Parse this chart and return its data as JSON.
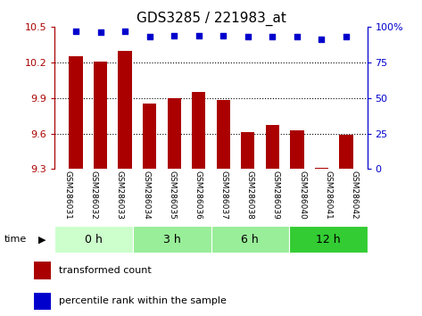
{
  "title": "GDS3285 / 221983_at",
  "samples": [
    "GSM286031",
    "GSM286032",
    "GSM286033",
    "GSM286034",
    "GSM286035",
    "GSM286036",
    "GSM286037",
    "GSM286038",
    "GSM286039",
    "GSM286040",
    "GSM286041",
    "GSM286042"
  ],
  "bar_values": [
    10.25,
    10.21,
    10.3,
    9.85,
    9.9,
    9.95,
    9.88,
    9.61,
    9.67,
    9.63,
    9.31,
    9.59
  ],
  "percentiles": [
    97,
    96,
    97,
    93,
    94,
    94,
    94,
    93,
    93,
    93,
    91,
    93
  ],
  "bar_color": "#aa0000",
  "dot_color": "#0000cc",
  "ylim_left": [
    9.3,
    10.5
  ],
  "ylim_right": [
    0,
    100
  ],
  "yticks_left": [
    9.3,
    9.6,
    9.9,
    10.2,
    10.5
  ],
  "yticks_right": [
    0,
    25,
    50,
    75,
    100
  ],
  "time_groups": [
    {
      "label": "0 h",
      "start": 0,
      "end": 3,
      "color": "#ccffcc"
    },
    {
      "label": "3 h",
      "start": 3,
      "end": 6,
      "color": "#99ee99"
    },
    {
      "label": "6 h",
      "start": 6,
      "end": 9,
      "color": "#99ee99"
    },
    {
      "label": "12 h",
      "start": 9,
      "end": 12,
      "color": "#33cc33"
    }
  ],
  "background_color": "#ffffff",
  "tick_area_color": "#cccccc",
  "legend_bar_label": "transformed count",
  "legend_dot_label": "percentile rank within the sample",
  "time_label": "time",
  "title_fontsize": 11,
  "tick_fontsize": 8,
  "sample_fontsize": 6.5,
  "time_fontsize": 9
}
